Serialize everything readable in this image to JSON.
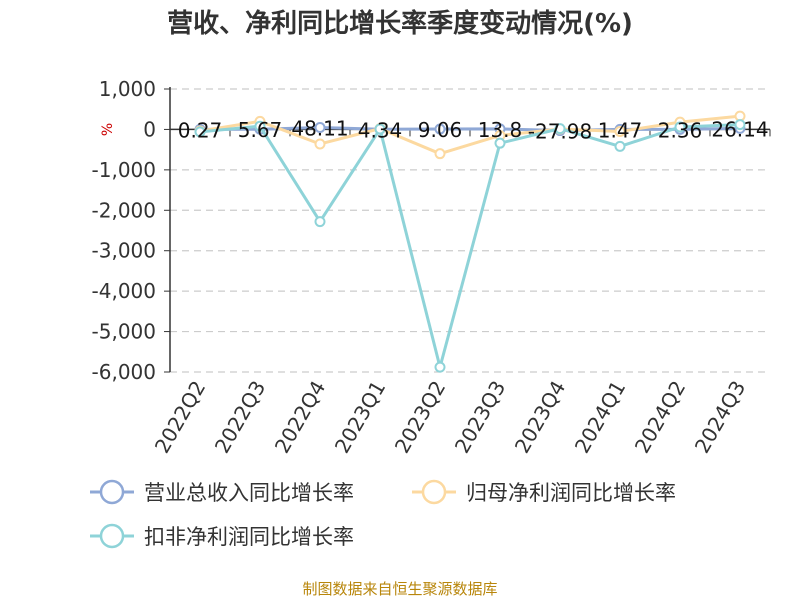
{
  "chart_data": {
    "type": "line",
    "title": "营收、净利同比增长率季度变动情况(%)",
    "unit_label": "%",
    "categories": [
      "2022Q2",
      "2022Q3",
      "2022Q4",
      "2023Q1",
      "2023Q2",
      "2023Q3",
      "2023Q4",
      "2024Q1",
      "2024Q2",
      "2024Q3"
    ],
    "ylim": [
      -6000,
      1000
    ],
    "yticks": [
      1000,
      0,
      -1000,
      -2000,
      -3000,
      -4000,
      -5000,
      -6000
    ],
    "ytick_labels": [
      "1,000",
      "0",
      "-1,000",
      "-2,000",
      "-3,000",
      "-4,000",
      "-5,000",
      "-6,000"
    ],
    "grid": true,
    "legend_position": "bottom",
    "series": [
      {
        "name": "营业总收入同比增长率",
        "color": "#8fa8d6",
        "values": [
          0.27,
          5.67,
          48.11,
          4.34,
          9.06,
          13.8,
          -27.98,
          1.47,
          2.36,
          26.14
        ],
        "data_labels": [
          "0.27",
          "5.67",
          "48.11",
          "4.34",
          "9.06",
          "13.8",
          "-27.98",
          "1.47",
          "2.36",
          "26.14"
        ]
      },
      {
        "name": "归母净利润同比增长率",
        "color": "#fcd9a0",
        "values": [
          -40,
          200,
          -360,
          20,
          -600,
          -150,
          10,
          -50,
          180,
          330
        ]
      },
      {
        "name": "扣非净利润同比增长率",
        "color": "#8ed3d8",
        "values": [
          -60,
          80,
          -2280,
          10,
          -5880,
          -340,
          20,
          -420,
          60,
          120
        ]
      }
    ]
  },
  "footer": {
    "source": "制图数据来自恒生聚源数据库"
  }
}
